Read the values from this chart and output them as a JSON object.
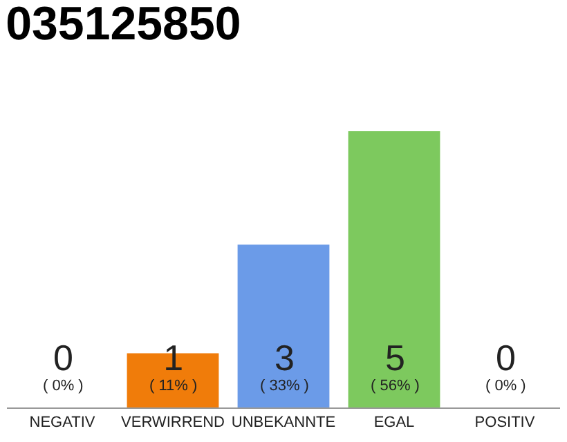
{
  "chart_data": {
    "type": "bar",
    "title": "035125850",
    "categories": [
      "NEGATIV",
      "VERWIRREND",
      "UNBEKANNTE",
      "EGAL",
      "POSITIV"
    ],
    "values": [
      0,
      11,
      33,
      56,
      0
    ],
    "colors": [
      "#cccccc",
      "#f07c0a",
      "#6b9be8",
      "#7dc95e",
      "#cccccc"
    ],
    "value_labels": [
      "0\n( 0% )",
      "1\n( 11% )",
      "3\n( 33% )",
      "5\n( 56% )",
      "0\n( 0% )"
    ],
    "grid": false,
    "legend": false
  }
}
